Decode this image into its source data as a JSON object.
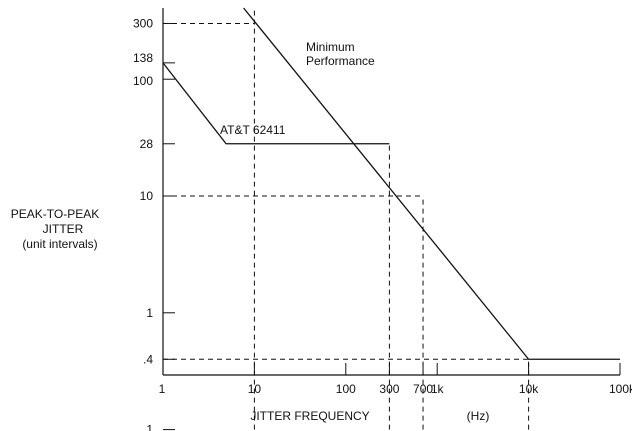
{
  "chart_data": {
    "type": "line",
    "x_scale": "log",
    "y_scale": "log",
    "xlim": [
      1,
      100000
    ],
    "ylim": [
      0.1,
      1000
    ],
    "grid": false,
    "legend": "none",
    "ylabel": [
      "PEAK-TO-PEAK",
      "JITTER",
      "(unit intervals)"
    ],
    "xlabel": "JITTER FREQUENCY",
    "xunit": "(Hz)",
    "x_ticks": [
      {
        "value": 1,
        "label": "1"
      },
      {
        "value": 10,
        "label": "10"
      },
      {
        "value": 100,
        "label": "100"
      },
      {
        "value": 300,
        "label": "300"
      },
      {
        "value": 700,
        "label": "700"
      },
      {
        "value": 1000,
        "label": "1k"
      },
      {
        "value": 10000,
        "label": "10k"
      },
      {
        "value": 100000,
        "label": "100k"
      }
    ],
    "y_ticks": [
      {
        "value": 0.1,
        "label": ".1"
      },
      {
        "value": 0.4,
        "label": ".4"
      },
      {
        "value": 1,
        "label": "1"
      },
      {
        "value": 10,
        "label": "10"
      },
      {
        "value": 28,
        "label": "28"
      },
      {
        "value": 100,
        "label": "100"
      },
      {
        "value": 138,
        "label": "138"
      },
      {
        "value": 300,
        "label": "300"
      }
    ],
    "series": [
      {
        "name": "Minimum Performance",
        "label_lines": [
          "Minimum",
          "Performance"
        ],
        "color": "#111111",
        "points": [
          [
            3.0,
            1000
          ],
          [
            10000,
            0.4
          ],
          [
            100000,
            0.4
          ]
        ]
      },
      {
        "name": "AT&T 62411",
        "label_lines": [
          "AT&T 62411"
        ],
        "color": "#111111",
        "points": [
          [
            1,
            138
          ],
          [
            4.9,
            28
          ],
          [
            300,
            28
          ]
        ]
      }
    ],
    "reference_lines": [
      {
        "type": "vertical",
        "x": 10,
        "y_from": 0.1,
        "y_to": 600
      },
      {
        "type": "vertical",
        "x": 300,
        "y_from": 0.1,
        "y_to": 28
      },
      {
        "type": "vertical",
        "x": 700,
        "y_from": 0.1,
        "y_to": 10
      },
      {
        "type": "vertical",
        "x": 10000,
        "y_from": 0.1,
        "y_to": 0.4
      },
      {
        "type": "horizontal",
        "y": 300,
        "x_from": 1,
        "x_to": 10
      },
      {
        "type": "horizontal",
        "y": 10,
        "x_from": 1,
        "x_to": 700
      },
      {
        "type": "horizontal",
        "y": 0.4,
        "x_from": 1,
        "x_to": 10000
      }
    ]
  }
}
